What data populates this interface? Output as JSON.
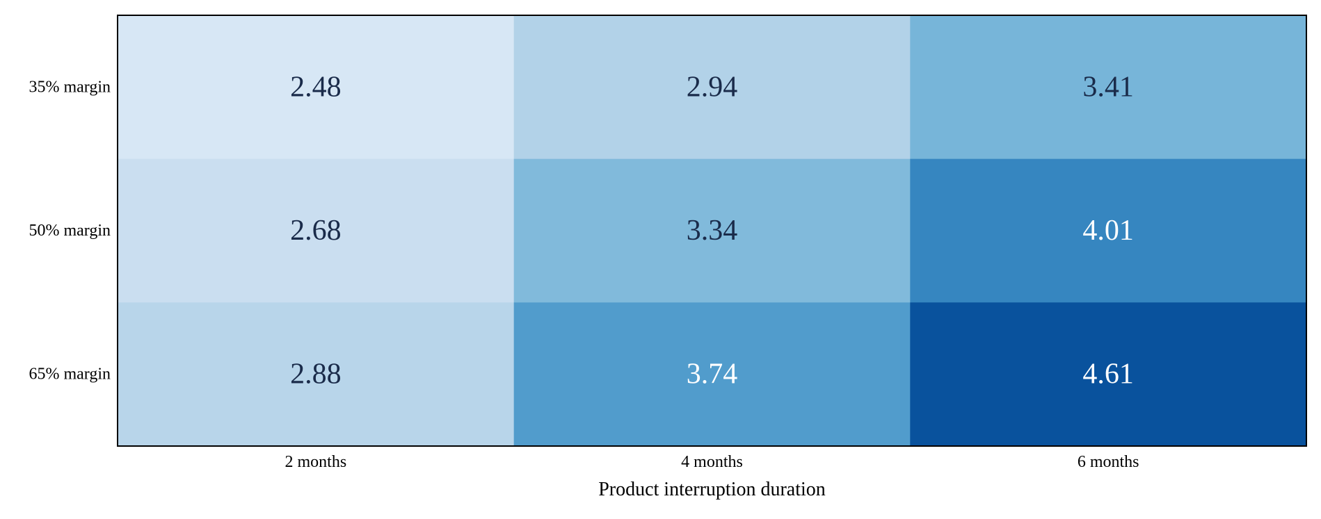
{
  "chart_data": {
    "type": "heatmap",
    "title": "",
    "xlabel": "Product interruption duration",
    "ylabel": "",
    "x_categories": [
      "2 months",
      "4 months",
      "6 months"
    ],
    "y_categories": [
      "35% margin",
      "50% margin",
      "65% margin"
    ],
    "values": [
      [
        2.48,
        2.94,
        3.41
      ],
      [
        2.68,
        3.34,
        4.01
      ],
      [
        2.88,
        3.74,
        4.61
      ]
    ],
    "value_format": "0.00",
    "colormap": "Blues",
    "vmin": 2.0,
    "vmax": 5.0,
    "colorbar": false,
    "grid": false,
    "legend": "none",
    "colors": {
      "light_text": "#ffffff",
      "dark_text": "#1a2b4a",
      "frame": "#000000"
    }
  }
}
